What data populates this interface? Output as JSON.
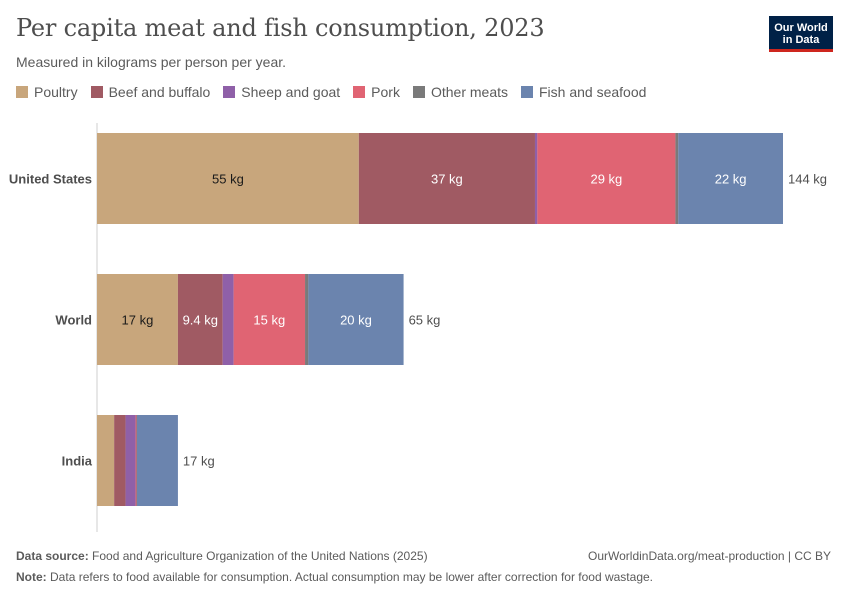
{
  "header": {
    "title": "Per capita meat and fish consumption, 2023",
    "subtitle": "Measured in kilograms per person per year."
  },
  "logo": {
    "line1": "Our World",
    "line2": "in Data"
  },
  "footer": {
    "source_label": "Data source:",
    "source_text": "Food and Agriculture Organization of the United Nations (2025)",
    "credit": "OurWorldinData.org/meat-production | CC BY",
    "note_label": "Note:",
    "note_text": "Data refers to food available for consumption. Actual consumption may be lower after correction for food wastage."
  },
  "chart_data": {
    "type": "bar",
    "orientation": "horizontal",
    "stacked": true,
    "unit": "kg",
    "categories": [
      "United States",
      "World",
      "India"
    ],
    "series": [
      {
        "name": "Poultry",
        "color": "#c8a67c",
        "values": [
          55,
          17,
          3.6
        ]
      },
      {
        "name": "Beef and buffalo",
        "color": "#a05a63",
        "values": [
          37,
          9.4,
          2.4
        ]
      },
      {
        "name": "Sheep and goat",
        "color": "#8f60a8",
        "values": [
          0.5,
          2.3,
          2.1
        ]
      },
      {
        "name": "Pork",
        "color": "#e06473",
        "values": [
          29,
          15,
          0.2
        ]
      },
      {
        "name": "Other meats",
        "color": "#7a7a7a",
        "values": [
          0.6,
          0.7,
          0.1
        ]
      },
      {
        "name": "Fish and seafood",
        "color": "#6b84ae",
        "values": [
          22,
          20,
          8.6
        ]
      }
    ],
    "segment_labels": [
      [
        "55 kg",
        "37 kg",
        "",
        "29 kg",
        "",
        "22 kg"
      ],
      [
        "17 kg",
        "9.4 kg",
        "",
        "15 kg",
        "",
        "20 kg"
      ],
      [
        "",
        "",
        "",
        "",
        "",
        ""
      ]
    ],
    "totals": [
      "144 kg",
      "65 kg",
      "17 kg"
    ],
    "legend_position": "top-left",
    "grid": false
  }
}
